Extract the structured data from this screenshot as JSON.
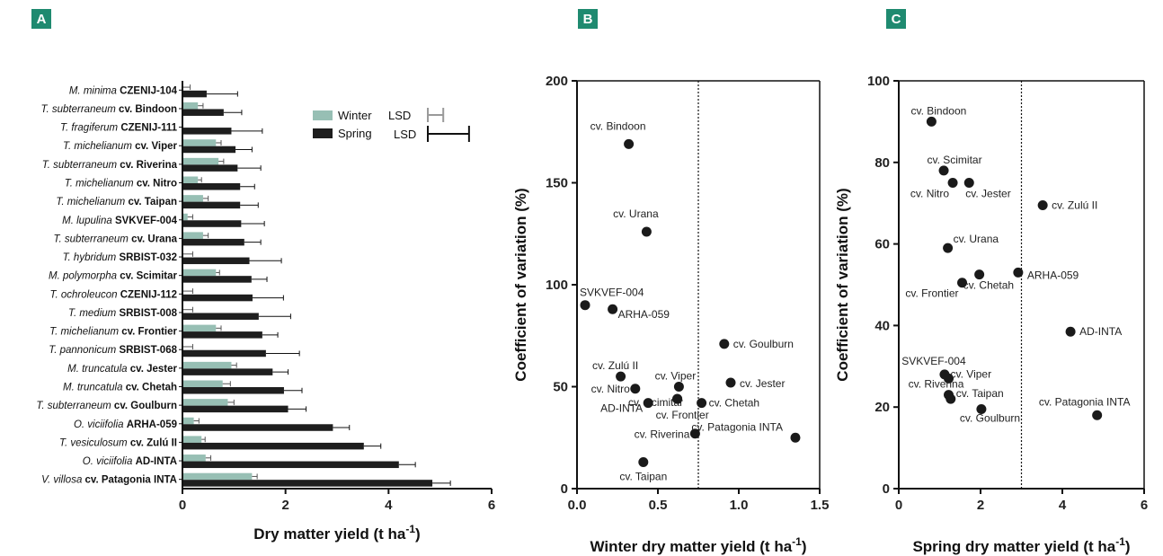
{
  "panels": {
    "a": "A",
    "b": "B",
    "c": "C"
  },
  "colors": {
    "winter": "#97bfb4",
    "spring": "#1e1e1e",
    "lsd_winter": "#9a9a9a",
    "lsd_spring": "#111111",
    "badge": "#1f8a70"
  },
  "chart_data": [
    {
      "id": "A",
      "type": "bar",
      "orientation": "horizontal",
      "categories": [
        {
          "italic": "M. minima",
          "bold": "CZENIJ-104"
        },
        {
          "italic": "T. subterraneum",
          "bold": "cv. Bindoon"
        },
        {
          "italic": "T. fragiferum",
          "bold": "CZENIJ-111"
        },
        {
          "italic": "T. michelianum",
          "bold": "cv. Viper"
        },
        {
          "italic": "T. subterraneum",
          "bold": "cv. Riverina"
        },
        {
          "italic": "T. michelianum",
          "bold": "cv. Nitro"
        },
        {
          "italic": "T. michelianum",
          "bold": "cv. Taipan"
        },
        {
          "italic": "M. lupulina",
          "bold": "SVKVEF-004"
        },
        {
          "italic": "T. subterraneum",
          "bold": "cv. Urana"
        },
        {
          "italic": "T. hybridum",
          "bold": "SRBIST-032"
        },
        {
          "italic": "M. polymorpha",
          "bold": "cv. Scimitar"
        },
        {
          "italic": "T. ochroleucon",
          "bold": "CZENIJ-112"
        },
        {
          "italic": "T. medium",
          "bold": "SRBIST-008"
        },
        {
          "italic": "T. michelianum",
          "bold": "cv. Frontier"
        },
        {
          "italic": "T. pannonicum",
          "bold": "SRBIST-068"
        },
        {
          "italic": "M. truncatula",
          "bold": "cv. Jester"
        },
        {
          "italic": "M. truncatula",
          "bold": "cv. Chetah"
        },
        {
          "italic": "T. subterraneum",
          "bold": "cv. Goulburn"
        },
        {
          "italic": "O. viciifolia",
          "bold": "ARHA-059"
        },
        {
          "italic": "T. vesiculosum",
          "bold": "cv. Zulú II"
        },
        {
          "italic": "O. viciifolia",
          "bold": "AD-INTA"
        },
        {
          "italic": "V. villosa",
          "bold": "cv. Patagonia INTA"
        }
      ],
      "series": [
        {
          "name": "Winter",
          "values": [
            0.0,
            0.3,
            0.0,
            0.65,
            0.7,
            0.3,
            0.4,
            0.1,
            0.4,
            0.0,
            0.65,
            0.0,
            0.0,
            0.65,
            0.0,
            0.95,
            0.78,
            0.88,
            0.22,
            0.37,
            0.45,
            1.35
          ],
          "errors": [
            0.15,
            0.1,
            0.0,
            0.1,
            0.1,
            0.07,
            0.1,
            0.1,
            0.1,
            0.2,
            0.07,
            0.2,
            0.2,
            0.1,
            0.2,
            0.1,
            0.15,
            0.12,
            0.1,
            0.07,
            0.1,
            0.1
          ]
        },
        {
          "name": "Spring",
          "values": [
            0.47,
            0.8,
            0.95,
            1.03,
            1.07,
            1.12,
            1.12,
            1.14,
            1.2,
            1.3,
            1.34,
            1.36,
            1.48,
            1.55,
            1.62,
            1.75,
            1.97,
            2.05,
            2.92,
            3.52,
            4.2,
            4.85
          ],
          "errors": [
            0.6,
            0.35,
            0.6,
            0.32,
            0.45,
            0.28,
            0.35,
            0.45,
            0.32,
            0.62,
            0.3,
            0.6,
            0.62,
            0.3,
            0.65,
            0.3,
            0.35,
            0.35,
            0.32,
            0.33,
            0.32,
            0.35
          ]
        }
      ],
      "legend": [
        {
          "label": "Winter",
          "lsd": "LSD"
        },
        {
          "label": "Spring",
          "lsd": "LSD"
        }
      ],
      "lsd": {
        "winter": 0.3,
        "spring": 0.8
      },
      "xlim": [
        0,
        6
      ],
      "xticks": [
        "0",
        "2",
        "4",
        "6"
      ],
      "xlabel": "Dry matter yield (t ha",
      "xlabel_sup": "-1",
      "xlabel_end": ")"
    },
    {
      "id": "B",
      "type": "scatter",
      "xlim": [
        0,
        1.5
      ],
      "ylim": [
        0,
        200
      ],
      "xticks": [
        "0.0",
        "0.5",
        "1.0",
        "1.5"
      ],
      "yticks": [
        "0",
        "50",
        "100",
        "150",
        "200"
      ],
      "vline": 0.75,
      "xlabel": "Winter dry matter yield (t ha",
      "xlabel_sup": "-1",
      "xlabel_end": ")",
      "ylabel": "Coefficient of variation (%)",
      "points": [
        {
          "label": "cv. Bindoon",
          "x": 0.32,
          "y": 169
        },
        {
          "label": "cv. Urana",
          "x": 0.43,
          "y": 126
        },
        {
          "label": "SVKVEF-004",
          "x": 0.05,
          "y": 90
        },
        {
          "label": "ARHA-059",
          "x": 0.22,
          "y": 88
        },
        {
          "label": "cv. Goulburn",
          "x": 0.91,
          "y": 71
        },
        {
          "label": "cv. Zulú II",
          "x": 0.27,
          "y": 55
        },
        {
          "label": "cv. Jester",
          "x": 0.95,
          "y": 52
        },
        {
          "label": "cv. Viper",
          "x": 0.63,
          "y": 50
        },
        {
          "label": "cv. Nitro",
          "x": 0.36,
          "y": 49
        },
        {
          "label": "cv. Scimitar",
          "x": 0.62,
          "y": 44
        },
        {
          "label": "AD-INTA",
          "x": 0.44,
          "y": 42
        },
        {
          "label": "cv. Chetah",
          "x": 0.77,
          "y": 42
        },
        {
          "label": "cv. Frontier",
          "x": 0.62,
          "y": 44
        },
        {
          "label": "cv. Riverina",
          "x": 0.73,
          "y": 27
        },
        {
          "label": "cv. Patagonia INTA",
          "x": 1.35,
          "y": 25
        },
        {
          "label": "cv. Taipan",
          "x": 0.41,
          "y": 13
        }
      ]
    },
    {
      "id": "C",
      "type": "scatter",
      "xlim": [
        0,
        6
      ],
      "ylim": [
        0,
        100
      ],
      "xticks": [
        "0",
        "2",
        "4",
        "6"
      ],
      "yticks": [
        "0",
        "20",
        "40",
        "60",
        "80",
        "100"
      ],
      "vline": 3,
      "xlabel": "Spring dry matter yield (t ha",
      "xlabel_sup": "-1",
      "xlabel_end": ")",
      "ylabel": "Coefficient of variation (%)",
      "points": [
        {
          "label": "cv. Bindoon",
          "x": 0.8,
          "y": 90
        },
        {
          "label": "cv. Scimitar",
          "x": 1.1,
          "y": 78
        },
        {
          "label": "cv. Nitro",
          "x": 1.32,
          "y": 75
        },
        {
          "label": "cv. Jester",
          "x": 1.72,
          "y": 75
        },
        {
          "label": "cv. Zulú II",
          "x": 3.52,
          "y": 69.5
        },
        {
          "label": "cv. Urana",
          "x": 1.2,
          "y": 59
        },
        {
          "label": "ARHA-059",
          "x": 2.92,
          "y": 53
        },
        {
          "label": "cv. Chetah",
          "x": 1.97,
          "y": 52.5
        },
        {
          "label": "cv. Frontier",
          "x": 1.55,
          "y": 50.5
        },
        {
          "label": "AD-INTA",
          "x": 4.2,
          "y": 38.5
        },
        {
          "label": "SVKVEF-004",
          "x": 1.12,
          "y": 28
        },
        {
          "label": "cv. Viper",
          "x": 1.22,
          "y": 27
        },
        {
          "label": "cv. Riverina",
          "x": 1.22,
          "y": 23
        },
        {
          "label": "cv. Taipan",
          "x": 1.27,
          "y": 22
        },
        {
          "label": "cv. Goulburn",
          "x": 2.02,
          "y": 19.5
        },
        {
          "label": "cv. Patagonia INTA",
          "x": 4.85,
          "y": 18
        }
      ]
    }
  ]
}
